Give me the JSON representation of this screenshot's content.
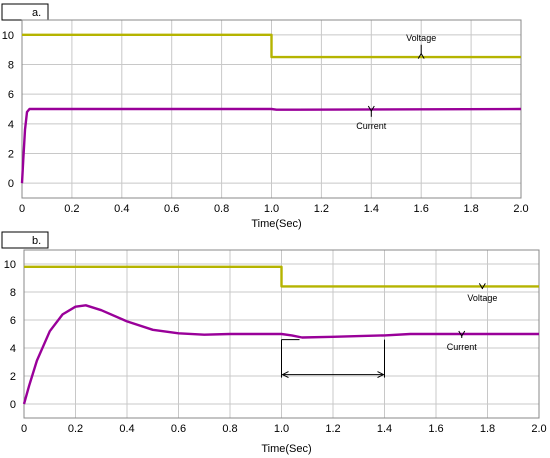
{
  "chart_data": [
    {
      "type": "line",
      "panel_label": "a.",
      "xlabel": "Time(Sec)",
      "xlim": [
        0,
        2.0
      ],
      "ylim": [
        -1,
        11
      ],
      "xticks": [
        "0",
        "0.2",
        "0.4",
        "0.6",
        "0.8",
        "1.0",
        "1.2",
        "1.4",
        "1.6",
        "1.8",
        "2.0"
      ],
      "yticks": [
        "0",
        "2",
        "4",
        "6",
        "8",
        "10"
      ],
      "grid": true,
      "series": [
        {
          "name": "Voltage",
          "color": "#b5b400",
          "points": [
            [
              0,
              10
            ],
            [
              1.0,
              10
            ],
            [
              1.0,
              8.5
            ],
            [
              2.0,
              8.5
            ]
          ]
        },
        {
          "name": "Current",
          "color": "#990099",
          "points": [
            [
              0,
              0
            ],
            [
              0.005,
              1.5
            ],
            [
              0.012,
              3.6
            ],
            [
              0.02,
              4.8
            ],
            [
              0.03,
              5.0
            ],
            [
              0.5,
              5.0
            ],
            [
              1.0,
              5.0
            ],
            [
              1.02,
              4.95
            ],
            [
              1.1,
              4.95
            ],
            [
              2.0,
              5.0
            ]
          ]
        }
      ],
      "annotations": [
        {
          "text": "Voltage",
          "x": 1.6,
          "y": 8.6,
          "label_y": 9.6
        },
        {
          "text": "Current",
          "x": 1.4,
          "y": 5.0,
          "label_y": 3.8
        }
      ]
    },
    {
      "type": "line",
      "panel_label": "b.",
      "xlabel": "Time(Sec)",
      "xlim": [
        0,
        2.0
      ],
      "ylim": [
        -1,
        11
      ],
      "xticks": [
        "0",
        "0.2",
        "0.4",
        "0.6",
        "0.8",
        "1.0",
        "1.2",
        "1.4",
        "1.6",
        "1.8",
        "2.0"
      ],
      "yticks": [
        "0",
        "2",
        "4",
        "6",
        "8",
        "10"
      ],
      "grid": true,
      "series": [
        {
          "name": "Voltage",
          "color": "#b5b400",
          "points": [
            [
              0,
              9.8
            ],
            [
              1.0,
              9.8
            ],
            [
              1.0,
              8.4
            ],
            [
              2.0,
              8.4
            ]
          ]
        },
        {
          "name": "Current",
          "color": "#990099",
          "points": [
            [
              0,
              0
            ],
            [
              0.02,
              1.3
            ],
            [
              0.05,
              3.1
            ],
            [
              0.1,
              5.2
            ],
            [
              0.15,
              6.4
            ],
            [
              0.2,
              6.95
            ],
            [
              0.24,
              7.05
            ],
            [
              0.3,
              6.7
            ],
            [
              0.4,
              5.9
            ],
            [
              0.5,
              5.3
            ],
            [
              0.6,
              5.05
            ],
            [
              0.7,
              4.95
            ],
            [
              0.8,
              5.0
            ],
            [
              1.0,
              5.0
            ],
            [
              1.04,
              4.9
            ],
            [
              1.08,
              4.75
            ],
            [
              1.2,
              4.8
            ],
            [
              1.3,
              4.85
            ],
            [
              1.4,
              4.9
            ],
            [
              1.5,
              5.0
            ],
            [
              1.7,
              5.0
            ],
            [
              2.0,
              5.0
            ]
          ]
        }
      ],
      "annotations": [
        {
          "text": "Voltage",
          "x": 1.78,
          "y": 8.4,
          "label_y": 7.5
        },
        {
          "text": "Current",
          "x": 1.7,
          "y": 5.0,
          "label_y": 4.0
        }
      ],
      "bracket": {
        "x1": 1.0,
        "x2": 1.4,
        "y": 2.1,
        "y_top": 4.6
      }
    }
  ]
}
